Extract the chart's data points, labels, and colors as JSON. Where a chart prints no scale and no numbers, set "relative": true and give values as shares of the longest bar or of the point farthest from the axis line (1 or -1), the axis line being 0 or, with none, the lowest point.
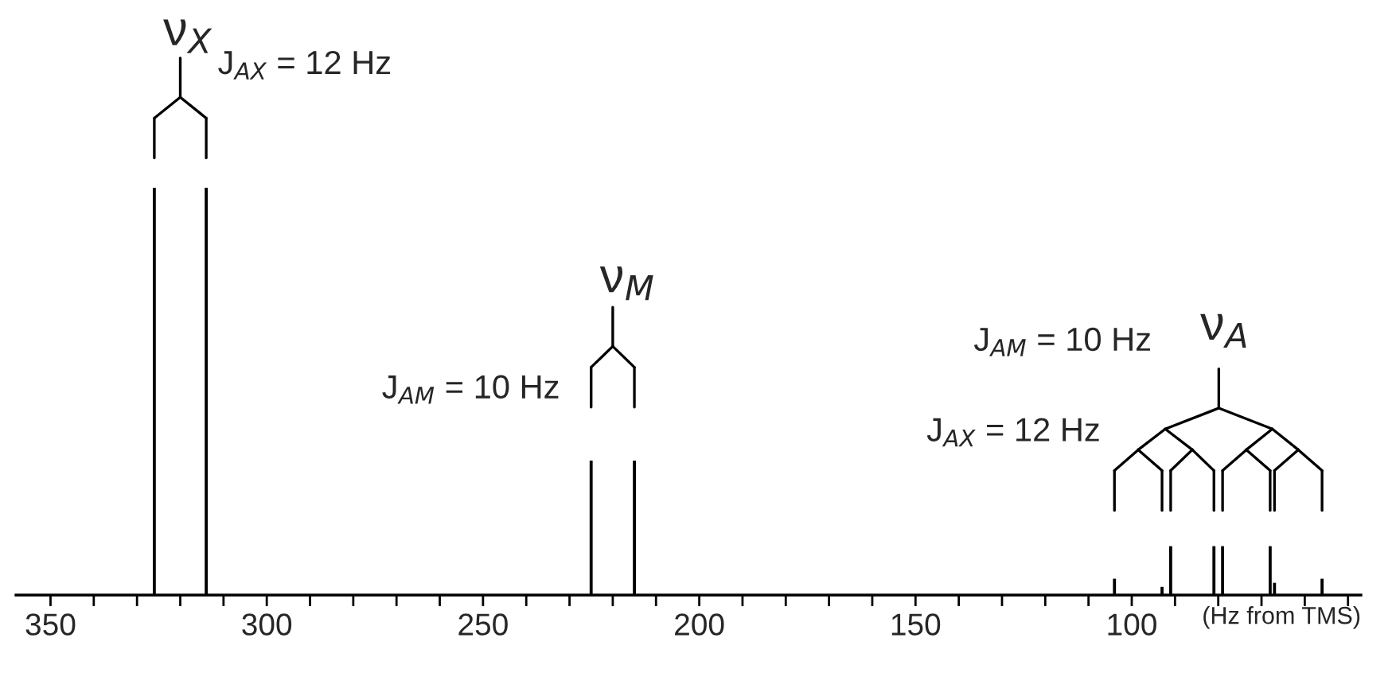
{
  "chart_data": {
    "type": "bar",
    "relative": true,
    "xlabel": "(Hz from TMS)",
    "series": [
      {
        "color": "#000000",
        "x": [
          326,
          314
        ],
        "values": [
          1,
          1
        ]
      },
      {
        "color": "#000000",
        "x": [
          225,
          215
        ],
        "values": [
          0.33,
          0.33
        ]
      },
      {
        "color": "#000000",
        "x": [
          104,
          93,
          91,
          81,
          79,
          68,
          67,
          56
        ],
        "values": [
          0.04,
          0.02,
          0.12,
          0.12,
          0.12,
          0.12,
          0.03,
          0.04
        ]
      }
    ],
    "xlim": [
      358,
      47
    ],
    "xticks": [
      350,
      {
        "value": 340,
        "label": null
      },
      {
        "value": 330,
        "label": null
      },
      {
        "value": 320,
        "label": null
      },
      {
        "value": 310,
        "label": null
      },
      300,
      {
        "value": 290,
        "label": null
      },
      {
        "value": 280,
        "label": null
      },
      {
        "value": 270,
        "label": null
      },
      {
        "value": 260,
        "label": null
      },
      250,
      {
        "value": 240,
        "label": null
      },
      {
        "value": 230,
        "label": null
      },
      {
        "value": 220,
        "label": null
      },
      {
        "value": 210,
        "label": null
      },
      200,
      {
        "value": 190,
        "label": null
      },
      {
        "value": 180,
        "label": null
      },
      {
        "value": 170,
        "label": null
      },
      {
        "value": 160,
        "label": null
      },
      150,
      {
        "value": 140,
        "label": null
      },
      {
        "value": 130,
        "label": null
      },
      {
        "value": 120,
        "label": null
      },
      {
        "value": 110,
        "label": null
      },
      100,
      {
        "value": 90,
        "label": null
      },
      {
        "value": 80,
        "label": null
      },
      {
        "value": 70,
        "label": null
      },
      {
        "value": 60,
        "label": null
      },
      {
        "value": 50,
        "label": null
      }
    ],
    "annotations": [
      "ν$_{X}$",
      "J$_{AX}$ = 12 Hz",
      "ν$_{M}$",
      "J$_{AM}$ = 10 Hz",
      "ν$_{A}$",
      "J$_{AM}$ = 10 Hz",
      "J$_{AX}$ = 12 Hz"
    ],
    "grid": false,
    "legend": false
  }
}
